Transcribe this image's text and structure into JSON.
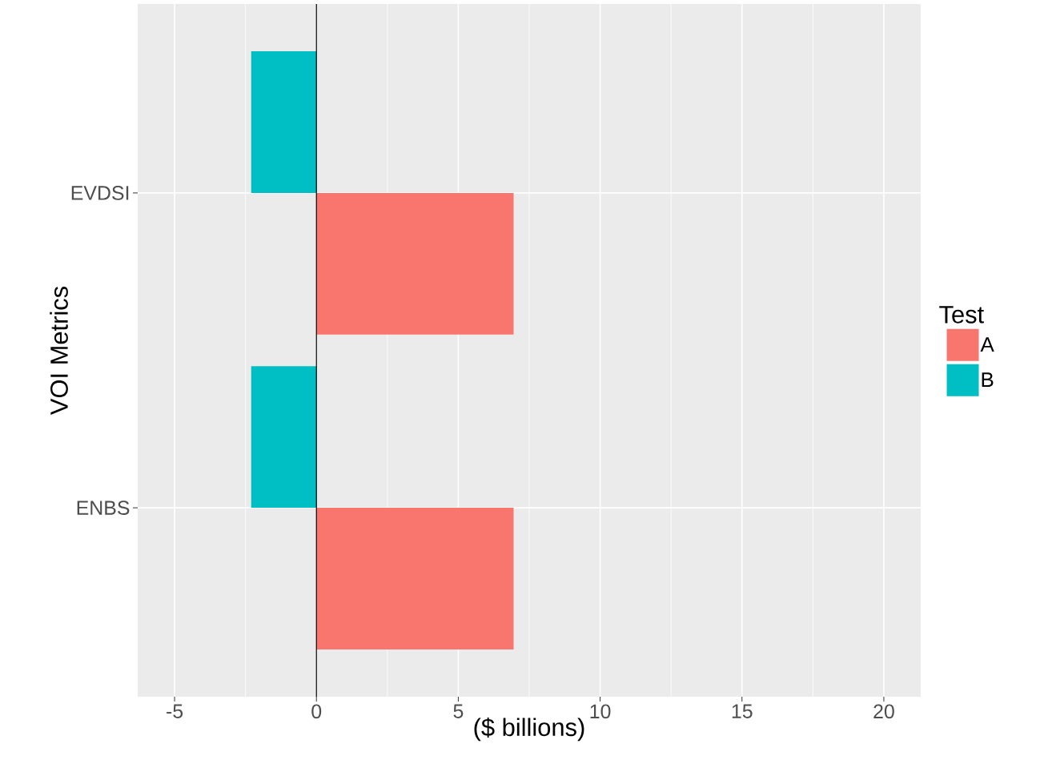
{
  "chart_data": {
    "type": "bar",
    "orientation": "horizontal",
    "ylabel": "VOI Metrics",
    "xlabel": "($ billions)",
    "legend_title": "Test",
    "categories": [
      "EVDSI",
      "ENBS"
    ],
    "series": [
      {
        "name": "A",
        "color": "#f8766d",
        "values": [
          6.95,
          6.95
        ]
      },
      {
        "name": "B",
        "color": "#00bfc4",
        "values": [
          -2.3,
          -2.3
        ]
      }
    ],
    "xlim": [
      -6.3,
      21.3
    ],
    "xticks": [
      -5,
      0,
      5,
      10,
      15,
      20
    ],
    "grid": true,
    "legend": "right",
    "ref_lines": [
      {
        "axis": "x",
        "value": 0,
        "color": "#000000"
      }
    ]
  }
}
